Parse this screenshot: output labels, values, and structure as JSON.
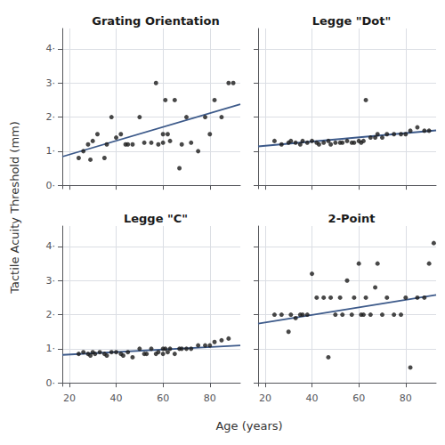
{
  "chart_data": {
    "type": "scatter",
    "xlabel": "Age (years)",
    "ylabel": "Tactile Acuity Threshold (mm)",
    "xlim": [
      17,
      93
    ],
    "ylim": [
      -0.1,
      4.6
    ],
    "xticks": [
      20,
      40,
      60,
      80
    ],
    "yticks": [
      {
        "value": 0,
        "label": "0·"
      },
      {
        "value": 1,
        "label": "1·"
      },
      {
        "value": 2,
        "label": "2·"
      },
      {
        "value": 3,
        "label": "3·"
      },
      {
        "value": 4,
        "label": "4·"
      }
    ],
    "grid": true,
    "panels": [
      {
        "title": "Grating Orientation",
        "tick_labels": "y",
        "series": [
          {
            "type": "scatter",
            "color": "#1a1a1a",
            "x": [
              24,
              26,
              28,
              29,
              30,
              32,
              35,
              36,
              38,
              40,
              42,
              44,
              45,
              47,
              50,
              52,
              55,
              57,
              58,
              60,
              60,
              61,
              62,
              63,
              65,
              67,
              68,
              70,
              72,
              75,
              78,
              80,
              82,
              85,
              88,
              90
            ],
            "values": [
              0.8,
              1.0,
              1.2,
              0.75,
              1.3,
              1.5,
              0.8,
              1.2,
              2.0,
              1.4,
              1.5,
              1.2,
              1.2,
              1.2,
              2.0,
              1.25,
              1.25,
              3.0,
              1.2,
              1.25,
              1.5,
              2.5,
              1.5,
              1.3,
              2.5,
              0.5,
              1.2,
              2.0,
              1.25,
              1.0,
              2.0,
              1.5,
              2.5,
              2.0,
              3.0,
              3.0
            ]
          },
          {
            "type": "line",
            "color": "#3d5a8a",
            "x": [
              17,
              93
            ],
            "values": [
              0.84,
              2.38
            ]
          }
        ]
      },
      {
        "title": "Legge \"Dot\"",
        "tick_labels": false,
        "series": [
          {
            "type": "scatter",
            "color": "#1a1a1a",
            "x": [
              24,
              27,
              30,
              31,
              33,
              35,
              36,
              38,
              40,
              42,
              43,
              45,
              47,
              48,
              50,
              52,
              53,
              55,
              57,
              58,
              60,
              61,
              62,
              63,
              65,
              67,
              68,
              70,
              72,
              75,
              78,
              80,
              82,
              85,
              88,
              90
            ],
            "values": [
              1.3,
              1.2,
              1.25,
              1.3,
              1.25,
              1.2,
              1.3,
              1.25,
              1.3,
              1.25,
              1.2,
              1.25,
              1.3,
              1.2,
              1.25,
              1.25,
              1.25,
              1.3,
              1.25,
              1.25,
              1.3,
              1.25,
              1.3,
              2.5,
              1.4,
              1.4,
              1.5,
              1.4,
              1.5,
              1.5,
              1.5,
              1.5,
              1.6,
              1.7,
              1.6,
              1.6
            ]
          },
          {
            "type": "line",
            "color": "#3d5a8a",
            "x": [
              17,
              93
            ],
            "values": [
              1.14,
              1.61
            ]
          }
        ]
      },
      {
        "title": "Legge \"C\"",
        "series": [
          {
            "type": "scatter",
            "color": "#1a1a1a",
            "x": [
              24,
              26,
              28,
              29,
              30,
              31,
              33,
              35,
              36,
              38,
              40,
              42,
              43,
              45,
              47,
              50,
              52,
              53,
              55,
              57,
              58,
              60,
              60,
              61,
              62,
              63,
              65,
              67,
              68,
              70,
              72,
              75,
              78,
              80,
              82,
              85,
              88
            ],
            "values": [
              0.85,
              0.9,
              0.85,
              0.8,
              0.9,
              0.85,
              0.9,
              0.85,
              0.8,
              0.9,
              0.9,
              0.85,
              0.8,
              0.9,
              0.75,
              1.0,
              0.85,
              0.85,
              1.0,
              0.85,
              0.9,
              0.85,
              1.0,
              1.0,
              0.9,
              1.0,
              0.85,
              1.0,
              1.0,
              1.0,
              1.0,
              1.1,
              1.1,
              1.1,
              1.2,
              1.25,
              1.3
            ]
          },
          {
            "type": "line",
            "color": "#3d5a8a",
            "x": [
              17,
              93
            ],
            "values": [
              0.82,
              1.1
            ]
          }
        ]
      },
      {
        "title": "2-Point",
        "tick_labels": "x",
        "series": [
          {
            "type": "scatter",
            "color": "#1a1a1a",
            "x": [
              24,
              27,
              30,
              31,
              33,
              35,
              36,
              38,
              40,
              42,
              45,
              47,
              48,
              50,
              52,
              53,
              55,
              57,
              58,
              60,
              61,
              62,
              63,
              65,
              67,
              68,
              70,
              72,
              75,
              78,
              80,
              82,
              85,
              88,
              90,
              92
            ],
            "values": [
              2.0,
              2.0,
              1.5,
              2.0,
              1.9,
              2.0,
              2.0,
              2.0,
              3.2,
              2.5,
              2.5,
              0.75,
              2.5,
              2.0,
              2.5,
              2.0,
              3.0,
              2.0,
              2.5,
              3.5,
              2.0,
              2.0,
              2.5,
              2.0,
              2.8,
              3.5,
              2.0,
              2.5,
              2.0,
              2.0,
              2.5,
              0.45,
              2.5,
              2.5,
              3.5,
              4.1
            ]
          },
          {
            "type": "line",
            "color": "#3d5a8a",
            "x": [
              17,
              93
            ],
            "values": [
              1.74,
              2.58
            ]
          }
        ]
      }
    ]
  }
}
